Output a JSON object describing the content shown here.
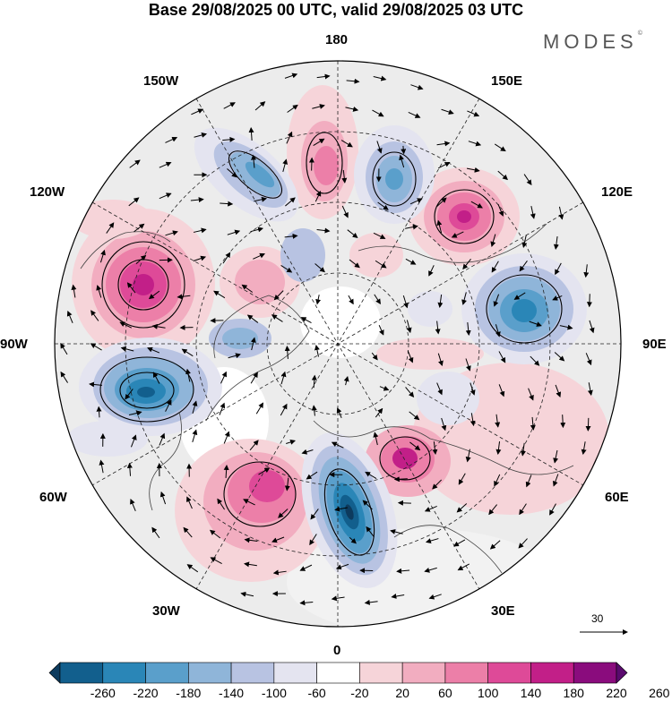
{
  "title": "Base 29/08/2025 00 UTC, valid 29/08/2025 03 UTC",
  "brand": "MODES",
  "brand_mark": "©",
  "longitude_labels": {
    "top": "180",
    "top_left": "150W",
    "top_right": "150E",
    "upper_left": "120W",
    "upper_right": "120E",
    "left": "90W",
    "right": "90E",
    "lower_left": "60W",
    "lower_right": "60E",
    "bottom_left": "30W",
    "bottom_right": "30E",
    "bottom": "0"
  },
  "vector_scale_label": "30",
  "colorbar": {
    "ticks": [
      "-260",
      "-220",
      "-180",
      "-140",
      "-100",
      "-60",
      "-20",
      "20",
      "60",
      "100",
      "140",
      "180",
      "220",
      "260"
    ],
    "colors": [
      "#0d3b5e",
      "#125f8d",
      "#2a86b7",
      "#5a9fcb",
      "#8fb5d9",
      "#b8c3e2",
      "#e4e4f0",
      "#ffffff",
      "#f6d4d9",
      "#f2adc0",
      "#ec7fa8",
      "#de4a98",
      "#c21f88",
      "#8a0c7d",
      "#5a0a6e"
    ]
  }
}
